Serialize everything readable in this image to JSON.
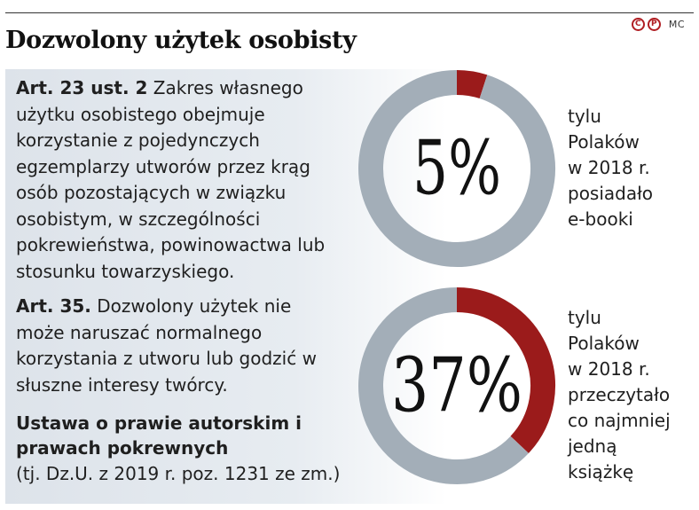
{
  "title": "Dozwolony użytek osobisty",
  "logos": {
    "mark1": "C",
    "mark2": "P",
    "text": "MC"
  },
  "articles": [
    {
      "heading": "Art. 23 ust. 2",
      "body": " Zakres własnego użytku osobistego obejmuje korzystanie z pojedynczych egzemplarzy utworów przez krąg osób pozostających w związku osobistym, w szczególności pokrewieństwa, powinowactwa lub stosunku towarzyskiego."
    },
    {
      "heading": "Art. 35.",
      "body": " Dozwolony użytek nie może naruszać normalnego korzystania z utworu lub godzić w słuszne interesy twórcy."
    }
  ],
  "law": {
    "title": "Ustawa o prawie autorskim i prawach pokrewnych",
    "reference": "(tj. Dz.U. z 2019 r. poz. 1231 ze zm.)"
  },
  "colors": {
    "highlight": "#9b1b1b",
    "remainder": "#a3aeb8",
    "brand": "#b01e23"
  },
  "chart_data": [
    {
      "type": "pie",
      "variant": "donut",
      "values": [
        5,
        95
      ],
      "center_label": "5%",
      "caption": [
        "tylu",
        "Polaków",
        "w 2018 r.",
        "posiadało",
        "e-booki"
      ]
    },
    {
      "type": "pie",
      "variant": "donut",
      "values": [
        37,
        63
      ],
      "center_label": "37%",
      "caption": [
        "tylu",
        "Polaków",
        "w 2018 r.",
        "przeczytało",
        "co najmniej",
        "jedną",
        "książkę"
      ]
    }
  ]
}
